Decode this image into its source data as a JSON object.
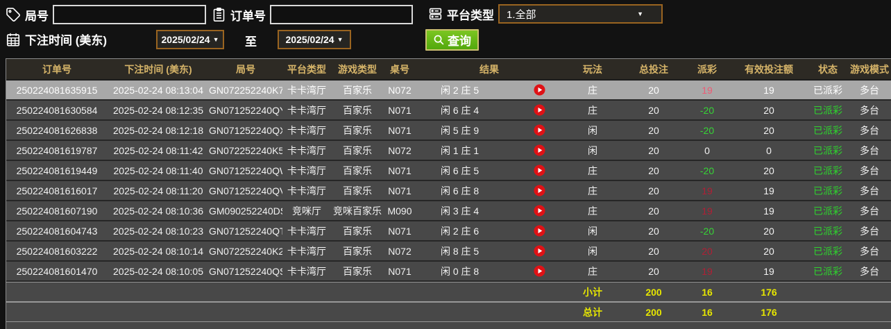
{
  "filters": {
    "round_label": "局号",
    "round_value": "",
    "order_label": "订单号",
    "order_value": "",
    "platform_label": "平台类型",
    "platform_value": "1.全部",
    "bet_time_label": "下注时间 (美东)",
    "date_from": "2025/02/24",
    "to_label": "至",
    "date_to": "2025/02/24",
    "search_label": "查询"
  },
  "icons": {
    "round": "tag-icon",
    "order": "clipboard-icon",
    "platform": "server-icon",
    "bet_time": "calendar-icon",
    "search": "magnifier-icon",
    "result_play": "play-video-icon",
    "dropdown": "chevron-down-icon"
  },
  "colors": {
    "header_text": "#d6b469",
    "payout_win_red": "#b11f35",
    "payout_loss_green": "#36d436",
    "status_paid_green": "#2ed32e",
    "totals_yellow": "#e6e600",
    "search_button_green": "#5cb812",
    "dropdown_border_orange": "#9a6420",
    "selected_row_gray": "#a8a8a8"
  },
  "table": {
    "headers": [
      "订单号",
      "下注时间 (美东)",
      "局号",
      "平台类型",
      "游戏类型",
      "桌号",
      "结果",
      "玩法",
      "总投注",
      "派彩",
      "有效投注额",
      "状态",
      "游戏模式"
    ],
    "rows": [
      {
        "order_id": "250224081635915",
        "bet_time": "2025-02-24 08:13:04",
        "round_id": "GN072252240K7",
        "platform": "卡卡湾厅",
        "game_type": "百家乐",
        "table_no": "N072",
        "result": "闲 2 庄 5",
        "play_type": "庄",
        "bet_total": "20",
        "payout": "19",
        "payout_tone": "pay-red",
        "valid_bet": "19",
        "status": "已派彩",
        "mode": "多台",
        "selected": true
      },
      {
        "order_id": "250224081630584",
        "bet_time": "2025-02-24 08:12:35",
        "round_id": "GN071252240QY",
        "platform": "卡卡湾厅",
        "game_type": "百家乐",
        "table_no": "N071",
        "result": "闲 6 庄 4",
        "play_type": "庄",
        "bet_total": "20",
        "payout": "-20",
        "payout_tone": "pay-green",
        "valid_bet": "20",
        "status": "已派彩",
        "mode": "多台",
        "selected": false
      },
      {
        "order_id": "250224081626838",
        "bet_time": "2025-02-24 08:12:18",
        "round_id": "GN071252240QX",
        "platform": "卡卡湾厅",
        "game_type": "百家乐",
        "table_no": "N071",
        "result": "闲 5 庄 9",
        "play_type": "闲",
        "bet_total": "20",
        "payout": "-20",
        "payout_tone": "pay-green",
        "valid_bet": "20",
        "status": "已派彩",
        "mode": "多台",
        "selected": false
      },
      {
        "order_id": "250224081619787",
        "bet_time": "2025-02-24 08:11:42",
        "round_id": "GN072252240K5",
        "platform": "卡卡湾厅",
        "game_type": "百家乐",
        "table_no": "N072",
        "result": "闲 1 庄 1",
        "play_type": "闲",
        "bet_total": "20",
        "payout": "0",
        "payout_tone": "pay-zero",
        "valid_bet": "0",
        "status": "已派彩",
        "mode": "多台",
        "selected": false
      },
      {
        "order_id": "250224081619449",
        "bet_time": "2025-02-24 08:11:40",
        "round_id": "GN071252240QW",
        "platform": "卡卡湾厅",
        "game_type": "百家乐",
        "table_no": "N071",
        "result": "闲 6 庄 5",
        "play_type": "庄",
        "bet_total": "20",
        "payout": "-20",
        "payout_tone": "pay-green",
        "valid_bet": "20",
        "status": "已派彩",
        "mode": "多台",
        "selected": false
      },
      {
        "order_id": "250224081616017",
        "bet_time": "2025-02-24 08:11:20",
        "round_id": "GN071252240QV",
        "platform": "卡卡湾厅",
        "game_type": "百家乐",
        "table_no": "N071",
        "result": "闲 6 庄 8",
        "play_type": "庄",
        "bet_total": "20",
        "payout": "19",
        "payout_tone": "pay-red",
        "valid_bet": "19",
        "status": "已派彩",
        "mode": "多台",
        "selected": false
      },
      {
        "order_id": "250224081607190",
        "bet_time": "2025-02-24 08:10:36",
        "round_id": "GM090252240DS",
        "platform": "竞咪厅",
        "game_type": "竞咪百家乐",
        "table_no": "M090",
        "result": "闲 3 庄 4",
        "play_type": "庄",
        "bet_total": "20",
        "payout": "19",
        "payout_tone": "pay-red",
        "valid_bet": "19",
        "status": "已派彩",
        "mode": "多台",
        "selected": false
      },
      {
        "order_id": "250224081604743",
        "bet_time": "2025-02-24 08:10:23",
        "round_id": "GN071252240QT",
        "platform": "卡卡湾厅",
        "game_type": "百家乐",
        "table_no": "N071",
        "result": "闲 2 庄 6",
        "play_type": "闲",
        "bet_total": "20",
        "payout": "-20",
        "payout_tone": "pay-green",
        "valid_bet": "20",
        "status": "已派彩",
        "mode": "多台",
        "selected": false
      },
      {
        "order_id": "250224081603222",
        "bet_time": "2025-02-24 08:10:14",
        "round_id": "GN072252240K2",
        "platform": "卡卡湾厅",
        "game_type": "百家乐",
        "table_no": "N072",
        "result": "闲 8 庄 5",
        "play_type": "闲",
        "bet_total": "20",
        "payout": "20",
        "payout_tone": "pay-red",
        "valid_bet": "20",
        "status": "已派彩",
        "mode": "多台",
        "selected": false
      },
      {
        "order_id": "250224081601470",
        "bet_time": "2025-02-24 08:10:05",
        "round_id": "GN071252240QS",
        "platform": "卡卡湾厅",
        "game_type": "百家乐",
        "table_no": "N071",
        "result": "闲 0 庄 8",
        "play_type": "庄",
        "bet_total": "20",
        "payout": "19",
        "payout_tone": "pay-red",
        "valid_bet": "19",
        "status": "已派彩",
        "mode": "多台",
        "selected": false
      }
    ],
    "subtotal": {
      "label": "小计",
      "bet_total": "200",
      "payout": "16",
      "valid_bet": "176"
    },
    "total": {
      "label": "总计",
      "bet_total": "200",
      "payout": "16",
      "valid_bet": "176"
    }
  }
}
